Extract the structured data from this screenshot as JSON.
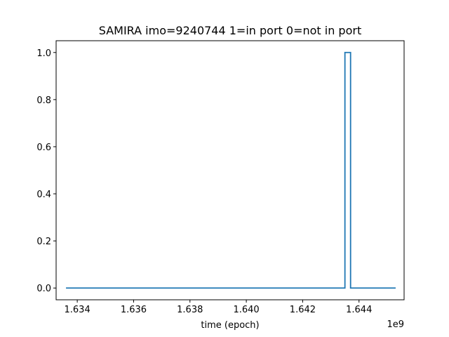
{
  "chart_data": {
    "type": "line",
    "title": "SAMIRA imo=9240744 1=in port 0=not in port",
    "xlabel": "time (epoch)",
    "ylabel": "",
    "x_offset_label": "1e9",
    "x_scale": 1000000000,
    "xlim": [
      1.63325,
      1.6456
    ],
    "ylim": [
      -0.05,
      1.05
    ],
    "x_ticks": [
      1.634,
      1.636,
      1.638,
      1.64,
      1.642,
      1.644
    ],
    "x_tick_labels": [
      "1.634",
      "1.636",
      "1.638",
      "1.640",
      "1.642",
      "1.644"
    ],
    "y_ticks": [
      0.0,
      0.2,
      0.4,
      0.6,
      0.8,
      1.0
    ],
    "y_tick_labels": [
      "0.0",
      "0.2",
      "0.4",
      "0.6",
      "0.8",
      "1.0"
    ],
    "grid": false,
    "series": [
      {
        "color": "#1f77b4",
        "x": [
          1.6336,
          1.6435,
          1.6435,
          1.6437,
          1.6437,
          1.6453
        ],
        "y": [
          0,
          0,
          1,
          1,
          0,
          0
        ]
      }
    ]
  }
}
